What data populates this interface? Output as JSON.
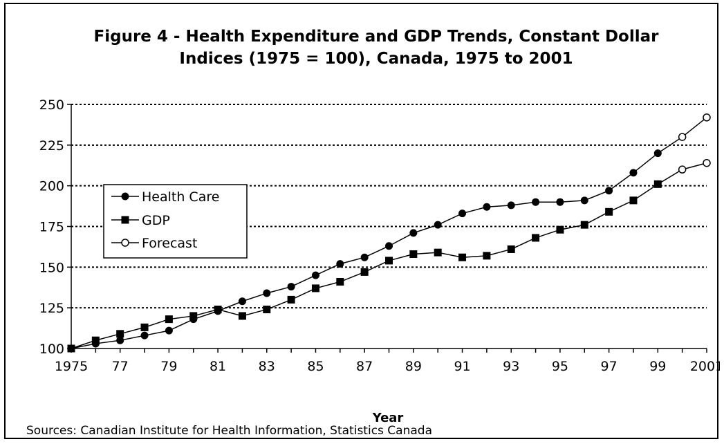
{
  "chart_data": {
    "type": "line",
    "title_lines": [
      "Figure 4 - Health Expenditure and GDP Trends, Constant Dollar",
      "Indices (1975 = 100), Canada, 1975 to 2001"
    ],
    "xlabel": "Year",
    "ylabel": "",
    "ylim": [
      100,
      250
    ],
    "yticks": [
      100,
      125,
      150,
      175,
      200,
      225,
      250
    ],
    "xlim": [
      1975,
      2001
    ],
    "xtick_labels": [
      {
        "year": 1975,
        "label": "1975"
      },
      {
        "year": 1977,
        "label": "77"
      },
      {
        "year": 1979,
        "label": "79"
      },
      {
        "year": 1981,
        "label": "81"
      },
      {
        "year": 1983,
        "label": "83"
      },
      {
        "year": 1985,
        "label": "85"
      },
      {
        "year": 1987,
        "label": "87"
      },
      {
        "year": 1989,
        "label": "89"
      },
      {
        "year": 1991,
        "label": "91"
      },
      {
        "year": 1993,
        "label": "93"
      },
      {
        "year": 1995,
        "label": "95"
      },
      {
        "year": 1997,
        "label": "97"
      },
      {
        "year": 1999,
        "label": "99"
      },
      {
        "year": 2001,
        "label": "2001"
      }
    ],
    "grid": "horizontal-dotted",
    "legend_position": "left",
    "series": [
      {
        "name": "Health Care",
        "marker": "filled-circle",
        "x": [
          1975,
          1976,
          1977,
          1978,
          1979,
          1980,
          1981,
          1982,
          1983,
          1984,
          1985,
          1986,
          1987,
          1988,
          1989,
          1990,
          1991,
          1992,
          1993,
          1994,
          1995,
          1996,
          1997,
          1998,
          1999
        ],
        "values": [
          100,
          103,
          105,
          108,
          111,
          118,
          123,
          129,
          134,
          138,
          145,
          152,
          156,
          163,
          171,
          176,
          183,
          187,
          188,
          190,
          190,
          191,
          197,
          208,
          220
        ]
      },
      {
        "name": "GDP",
        "marker": "filled-square",
        "x": [
          1975,
          1976,
          1977,
          1978,
          1979,
          1980,
          1981,
          1982,
          1983,
          1984,
          1985,
          1986,
          1987,
          1988,
          1989,
          1990,
          1991,
          1992,
          1993,
          1994,
          1995,
          1996,
          1997,
          1998,
          1999
        ],
        "values": [
          100,
          105,
          109,
          113,
          118,
          120,
          124,
          120,
          124,
          130,
          137,
          141,
          147,
          154,
          158,
          159,
          156,
          157,
          161,
          168,
          173,
          176,
          184,
          191,
          201
        ]
      },
      {
        "name": "Forecast",
        "marker": "open-circle",
        "x": [
          1999,
          2000,
          2001
        ],
        "values": [
          220,
          230,
          242
        ],
        "x2": [
          1999,
          2000,
          2001
        ],
        "values2": [
          201,
          210,
          214
        ]
      }
    ],
    "source": "Sources: Canadian Institute for Health Information, Statistics Canada"
  }
}
